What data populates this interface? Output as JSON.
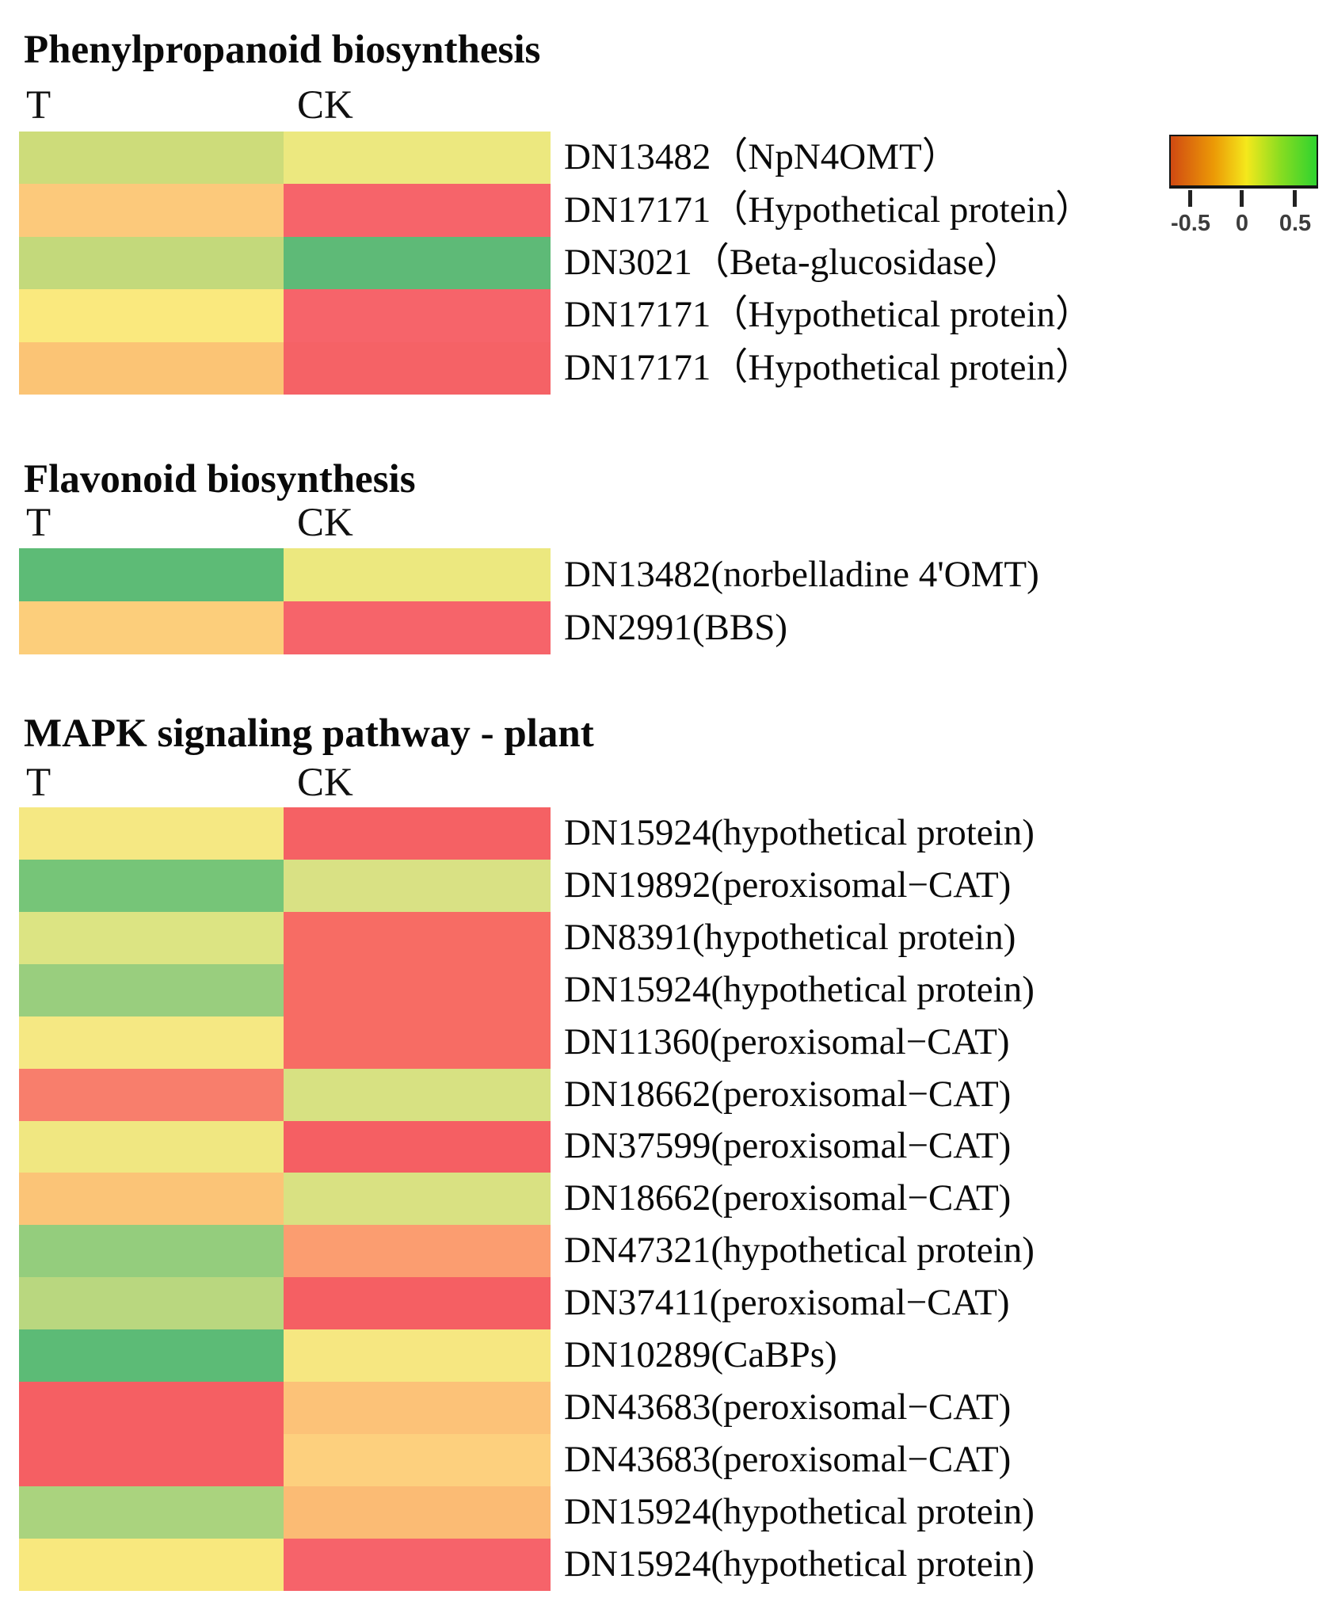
{
  "figure": {
    "background": "#ffffff"
  },
  "legend": {
    "tick_labels": [
      "-0.5",
      "0",
      "0.5"
    ],
    "tick_values": [
      -0.5,
      0,
      0.5
    ],
    "gradient_colors": {
      "low": "#d14a12",
      "mid": "#f4e81c",
      "high": "#2fd32f"
    },
    "orientation": "horizontal"
  },
  "chart_data": [
    {
      "type": "heatmap",
      "title": "Phenylpropanoid biosynthesis",
      "columns": [
        "T",
        "CK"
      ],
      "colorbar_range": [
        -0.5,
        0.5
      ],
      "rows": [
        {
          "label": "DN13482（NpN4OMT）",
          "t_color": "#cddc7a",
          "ck_color": "#ece87f",
          "t_value": 0.15,
          "ck_value": 0.05
        },
        {
          "label": "DN17171（Hypothetical protein）",
          "t_color": "#fcc97b",
          "ck_color": "#f6646a",
          "t_value": -0.3,
          "ck_value": -0.55
        },
        {
          "label": "DN3021（Beta-glucosidase）",
          "t_color": "#c3d97b",
          "ck_color": "#5eba77",
          "t_value": 0.15,
          "ck_value": 0.5
        },
        {
          "label": "DN17171（Hypothetical protein）",
          "t_color": "#fae97e",
          "ck_color": "#f6646a",
          "t_value": 0.0,
          "ck_value": -0.55
        },
        {
          "label": "DN17171（Hypothetical protein）",
          "t_color": "#fbc475",
          "ck_color": "#f56266",
          "t_value": -0.3,
          "ck_value": -0.55
        }
      ]
    },
    {
      "type": "heatmap",
      "title": "Flavonoid biosynthesis",
      "columns": [
        "T",
        "CK"
      ],
      "colorbar_range": [
        -0.5,
        0.5
      ],
      "rows": [
        {
          "label": "DN13482(norbelladine 4'OMT)",
          "t_color": "#5dbb76",
          "ck_color": "#ece87f",
          "t_value": 0.5,
          "ck_value": 0.05
        },
        {
          "label": "DN2991(BBS)",
          "t_color": "#fcce7b",
          "ck_color": "#f6646a",
          "t_value": -0.25,
          "ck_value": -0.55
        }
      ]
    },
    {
      "type": "heatmap",
      "title": "MAPK signaling pathway - plant",
      "columns": [
        "T",
        "CK"
      ],
      "colorbar_range": [
        -0.5,
        0.5
      ],
      "rows": [
        {
          "label": "DN15924(hypothetical protein)",
          "t_color": "#f5e883",
          "ck_color": "#f56164",
          "t_value": 0.0,
          "ck_value": -0.55
        },
        {
          "label": "DN19892(peroxisomal−CAT)",
          "t_color": "#76c578",
          "ck_color": "#d9e184",
          "t_value": 0.4,
          "ck_value": 0.1
        },
        {
          "label": "DN8391(hypothetical protein)",
          "t_color": "#dce483",
          "ck_color": "#f76c64",
          "t_value": 0.1,
          "ck_value": -0.5
        },
        {
          "label": "DN15924(hypothetical protein)",
          "t_color": "#99ce7e",
          "ck_color": "#f76c64",
          "t_value": 0.25,
          "ck_value": -0.5
        },
        {
          "label": "DN11360(peroxisomal−CAT)",
          "t_color": "#f5e883",
          "ck_color": "#f76c64",
          "t_value": 0.0,
          "ck_value": -0.5
        },
        {
          "label": "DN18662(peroxisomal−CAT)",
          "t_color": "#f87e6c",
          "ck_color": "#d7e182",
          "t_value": -0.45,
          "ck_value": 0.1
        },
        {
          "label": "DN37599(peroxisomal−CAT)",
          "t_color": "#f0e781",
          "ck_color": "#f55f63",
          "t_value": 0.0,
          "ck_value": -0.55
        },
        {
          "label": "DN18662(peroxisomal−CAT)",
          "t_color": "#fbc477",
          "ck_color": "#d9e182",
          "t_value": -0.3,
          "ck_value": 0.1
        },
        {
          "label": "DN47321(hypothetical protein)",
          "t_color": "#94cd7d",
          "ck_color": "#fb9d70",
          "t_value": 0.3,
          "ck_value": -0.4
        },
        {
          "label": "DN37411(peroxisomal−CAT)",
          "t_color": "#b9d77f",
          "ck_color": "#f55f63",
          "t_value": 0.2,
          "ck_value": -0.55
        },
        {
          "label": "DN10289(CaBPs)",
          "t_color": "#5cbb76",
          "ck_color": "#f6e781",
          "t_value": 0.5,
          "ck_value": 0.0
        },
        {
          "label": "DN43683(peroxisomal−CAT)",
          "t_color": "#f55f63",
          "ck_color": "#fcc278",
          "t_value": -0.55,
          "ck_value": -0.3
        },
        {
          "label": "DN43683(peroxisomal−CAT)",
          "t_color": "#f55f63",
          "ck_color": "#fdd07e",
          "t_value": -0.55,
          "ck_value": -0.2
        },
        {
          "label": "DN15924(hypothetical protein)",
          "t_color": "#aad37e",
          "ck_color": "#fbbb74",
          "t_value": 0.25,
          "ck_value": -0.35
        },
        {
          "label": "DN15924(hypothetical protein)",
          "t_color": "#f8e87e",
          "ck_color": "#f6636a",
          "t_value": 0.0,
          "ck_value": -0.55
        }
      ]
    }
  ]
}
